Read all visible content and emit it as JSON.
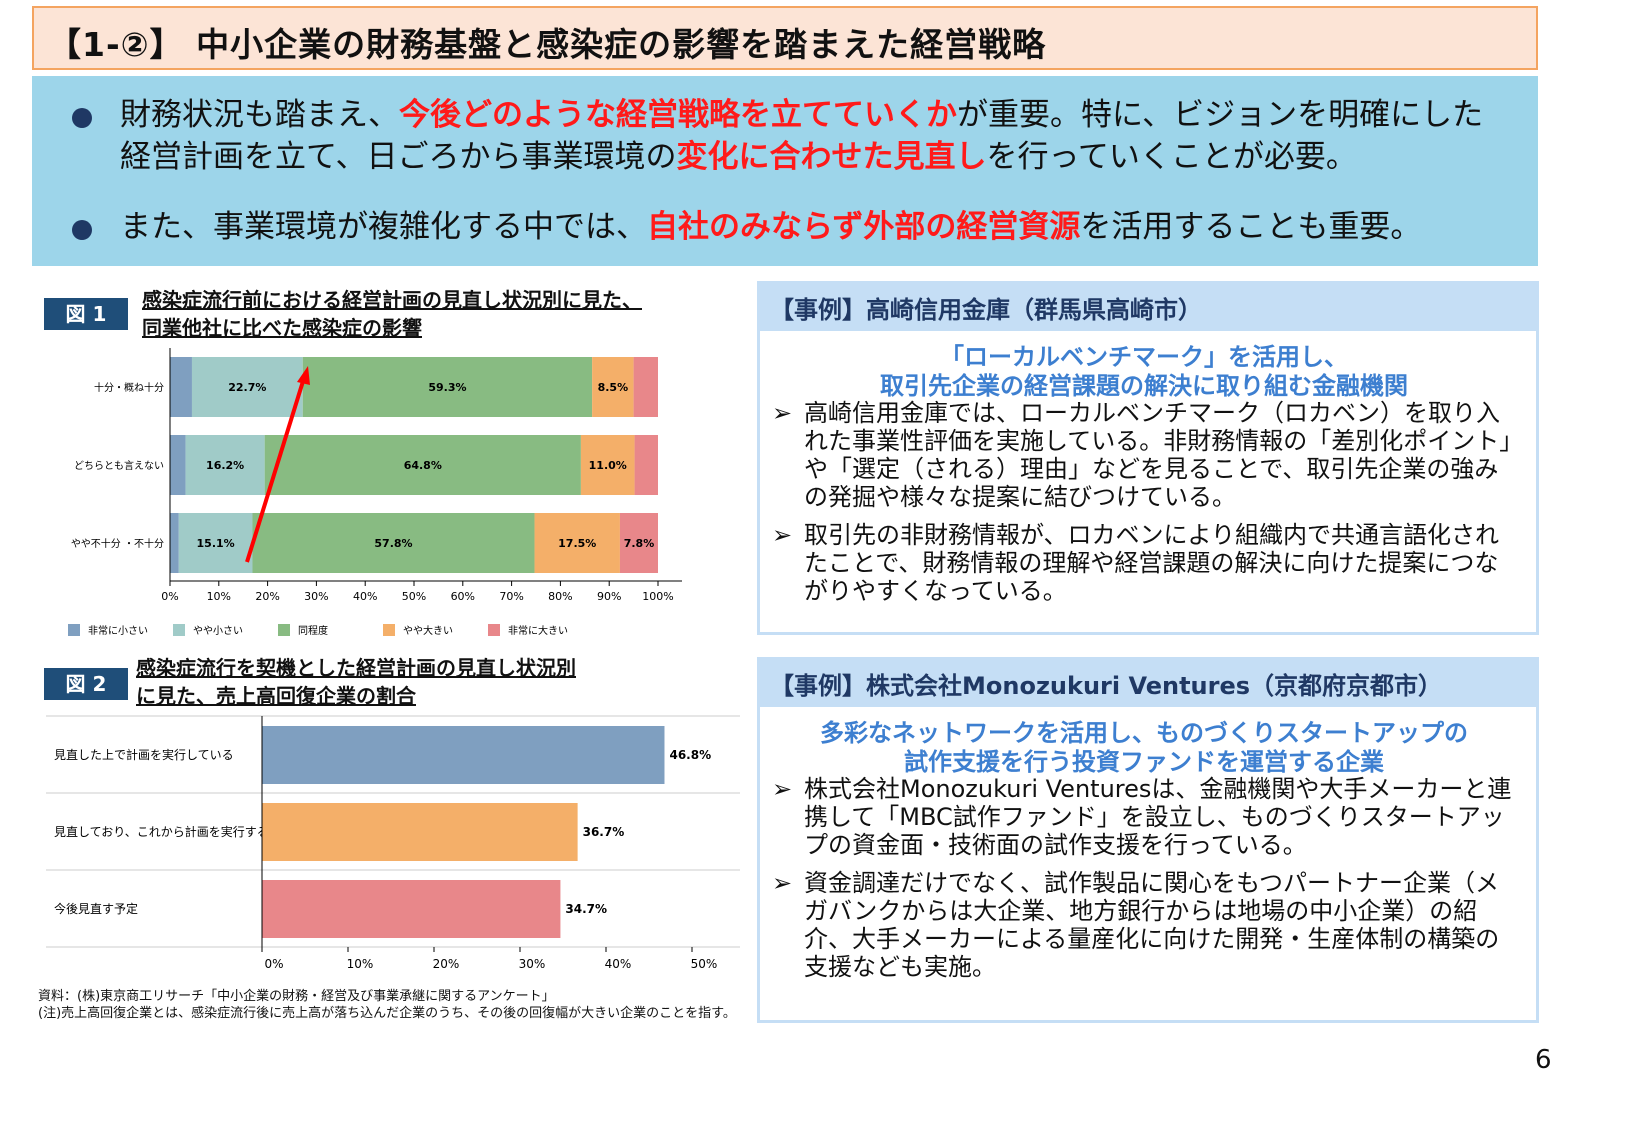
{
  "title": "【1-②】 中小企業の財務基盤と感染症の影響を踏まえた経営戦略",
  "summary": {
    "b1": {
      "a": "財務状況も踏まえ、",
      "r1": "今後どのような経営戦略を立てていくか",
      "b": "が重要。特に、ビジョンを明確にした経営計画を立て、日ごろから事業環境の",
      "r2": "変化に合わせた見直し",
      "c": "を行っていくことが必要。"
    },
    "b2": {
      "a": "また、事業環境が複雑化する中では、",
      "r1": "自社のみならず外部の経営資源",
      "b": "を活用することも重要。"
    }
  },
  "fig1": {
    "label": "図 1",
    "title1": "感染症流行前における経営計画の見直し状況別に見た、",
    "title2": "同業他社に比べた感染症の影響"
  },
  "fig2": {
    "label": "図 2",
    "title1": "感染症流行を契機とした経営計画の見直し状況別",
    "title2": "に見た、売上高回復企業の割合"
  },
  "colors": {
    "s1": "#7f9fc0",
    "s2": "#a0cbc8",
    "s3": "#88bb82",
    "s4": "#f4af69",
    "s5": "#e8878a"
  },
  "chart_data": [
    {
      "type": "bar",
      "stacked": true,
      "orientation": "horizontal",
      "categories": [
        "十分・概ね十分",
        "どちらとも言えない",
        "やや不十分 ・不十分"
      ],
      "series": [
        {
          "name": "非常に小さい",
          "values": [
            4.5,
            3.2,
            1.8
          ]
        },
        {
          "name": "やや小さい",
          "values": [
            22.7,
            16.2,
            15.1
          ]
        },
        {
          "name": "同程度",
          "values": [
            59.3,
            64.8,
            57.8
          ]
        },
        {
          "name": "やや大きい",
          "values": [
            8.5,
            11.0,
            17.5
          ]
        },
        {
          "name": "非常に大きい",
          "values": [
            5.0,
            4.8,
            7.8
          ]
        }
      ],
      "labels": [
        [
          "",
          "22.7%",
          "59.3%",
          "8.5%",
          ""
        ],
        [
          "",
          "16.2%",
          "64.8%",
          "11.0%",
          ""
        ],
        [
          "",
          "15.1%",
          "57.8%",
          "17.5%",
          "7.8%"
        ]
      ],
      "xticks": [
        "0%",
        "10%",
        "20%",
        "30%",
        "40%",
        "50%",
        "60%",
        "70%",
        "80%",
        "90%",
        "100%"
      ],
      "xlim": [
        0,
        100
      ],
      "legend": "bottom",
      "annotation": "red arrow"
    },
    {
      "type": "bar",
      "orientation": "horizontal",
      "categories": [
        "見直した上で計画を実行している",
        "見直しており、これから計画を実行する",
        "今後見直す予定"
      ],
      "values": [
        46.8,
        36.7,
        34.7
      ],
      "labels": [
        "46.8%",
        "36.7%",
        "34.7%"
      ],
      "xticks": [
        "0%",
        "10%",
        "20%",
        "30%",
        "40%",
        "50%"
      ],
      "xlim": [
        0,
        55
      ]
    }
  ],
  "source": "資料：(株)東京商工リサーチ「中小企業の財務・経営及び事業承継に関するアンケート」",
  "note": "(注)売上高回復企業とは、感染症流行後に売上高が落ち込んだ企業のうち、その後の回復幅が大きい企業のことを指す。",
  "case1": {
    "head": "【事例】高崎信用金庫（群馬県高崎市）",
    "sub1": "「ローカルベンチマーク」を活用し、",
    "sub2": "取引先企業の経営課題の解決に取り組む金融機関",
    "items": [
      "高崎信用金庫では、ローカルベンチマーク（ロカベン）を取り入れた事業性評価を実施している。非財務情報の「差別化ポイント」や「選定（される）理由」などを見ることで、取引先企業の強みの発掘や様々な提案に結びつけている。",
      "取引先の非財務情報が、ロカベンにより組織内で共通言語化されたことで、財務情報の理解や経営課題の解決に向けた提案につながりやすくなっている。"
    ]
  },
  "case2": {
    "head": "【事例】株式会社Monozukuri Ventures（京都府京都市）",
    "sub1": "多彩なネットワークを活用し、ものづくりスタートアップの",
    "sub2": "試作支援を行う投資ファンドを運営する企業",
    "items": [
      "株式会社Monozukuri Venturesは、金融機関や大手メーカーと連携して「MBC試作ファンド」を設立し、ものづくりスタートアップの資金面・技術面の試作支援を行っている。",
      "資金調達だけでなく、試作製品に関心をもつパートナー企業（メガバンクからは大企業、地方銀行からは地場の中小企業）の紹介、大手メーカーによる量産化に向けた開発・生産体制の構築の支援なども実施。"
    ]
  },
  "arrow_glyph": "➢",
  "page_number": "6"
}
